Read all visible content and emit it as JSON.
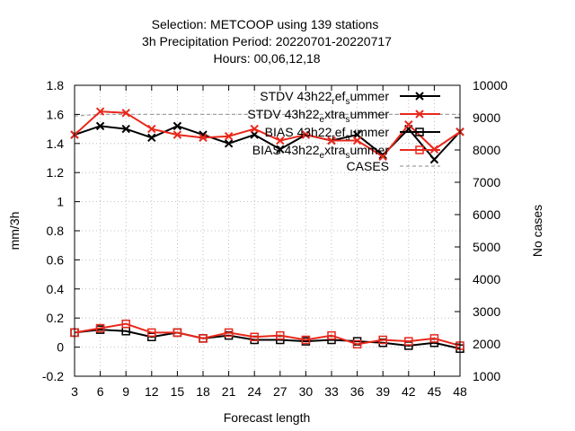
{
  "chart_data": {
    "type": "line",
    "title_lines": [
      "Selection: METCOOP using   139 stations",
      "3h Precipitation   Period: 20220701-20220717",
      "Hours: 00,06,12,18"
    ],
    "xlabel": "Forecast length",
    "ylabel": "mm/3h",
    "y2label": "No cases",
    "x": [
      3,
      6,
      9,
      12,
      15,
      18,
      21,
      24,
      27,
      30,
      33,
      36,
      39,
      42,
      45,
      48
    ],
    "xlim": [
      3,
      48
    ],
    "ylim": [
      -0.2,
      1.8
    ],
    "y2lim": [
      1000,
      10000
    ],
    "yticks": [
      "-0.2",
      "0",
      "0.2",
      "0.4",
      "0.6",
      "0.8",
      "1",
      "1.2",
      "1.4",
      "1.6",
      "1.8"
    ],
    "y2ticks": [
      "1000",
      "2000",
      "3000",
      "4000",
      "5000",
      "6000",
      "7000",
      "8000",
      "9000",
      "10000"
    ],
    "grid": true,
    "legend_position": "top-right",
    "series": [
      {
        "name": "STDV 43h22_ref_summer",
        "label_parts": [
          "STDV 43h22",
          "r",
          "ef",
          "s",
          "ummer"
        ],
        "color": "#000000",
        "marker": "x",
        "axis": "y1",
        "values": [
          1.46,
          1.52,
          1.5,
          1.44,
          1.52,
          1.46,
          1.4,
          1.46,
          1.36,
          1.46,
          1.42,
          1.46,
          1.32,
          1.5,
          1.29,
          1.48
        ]
      },
      {
        "name": "STDV 43h22_extra_summer",
        "label_parts": [
          "STDV 43h22",
          "e",
          "xtra",
          "s",
          "ummer"
        ],
        "color": "#e8281c",
        "marker": "x",
        "axis": "y1",
        "values": [
          1.46,
          1.62,
          1.61,
          1.5,
          1.46,
          1.44,
          1.45,
          1.5,
          1.42,
          1.46,
          1.42,
          1.42,
          1.31,
          1.53,
          1.36,
          1.48
        ]
      },
      {
        "name": "BIAS 43h22_ref_summer",
        "label_parts": [
          "BIAS 43h22",
          "r",
          "ef",
          "s",
          "ummer"
        ],
        "color": "#000000",
        "marker": "square",
        "axis": "y1",
        "values": [
          0.1,
          0.12,
          0.11,
          0.07,
          0.1,
          0.06,
          0.08,
          0.05,
          0.05,
          0.04,
          0.05,
          0.04,
          0.03,
          0.01,
          0.03,
          -0.01
        ]
      },
      {
        "name": "BIAS 43h22_extra_summer",
        "label_parts": [
          "BIAS 43h22",
          "e",
          "xtra",
          "s",
          "ummer"
        ],
        "color": "#e8281c",
        "marker": "square",
        "axis": "y1",
        "values": [
          0.1,
          0.13,
          0.16,
          0.1,
          0.1,
          0.06,
          0.1,
          0.07,
          0.08,
          0.05,
          0.08,
          0.02,
          0.05,
          0.04,
          0.06,
          0.01
        ]
      },
      {
        "name": "CASES",
        "label_parts": [
          "CASES",
          "",
          "",
          "",
          ""
        ],
        "color": "#a0a0a0",
        "marker": "none",
        "dashed": true,
        "axis": "y2",
        "values": [
          9050,
          9100,
          9100,
          9100,
          9100,
          9100,
          9100,
          9100,
          9100,
          9100,
          9100,
          9100,
          9100,
          9100,
          9100,
          9100
        ]
      }
    ]
  }
}
